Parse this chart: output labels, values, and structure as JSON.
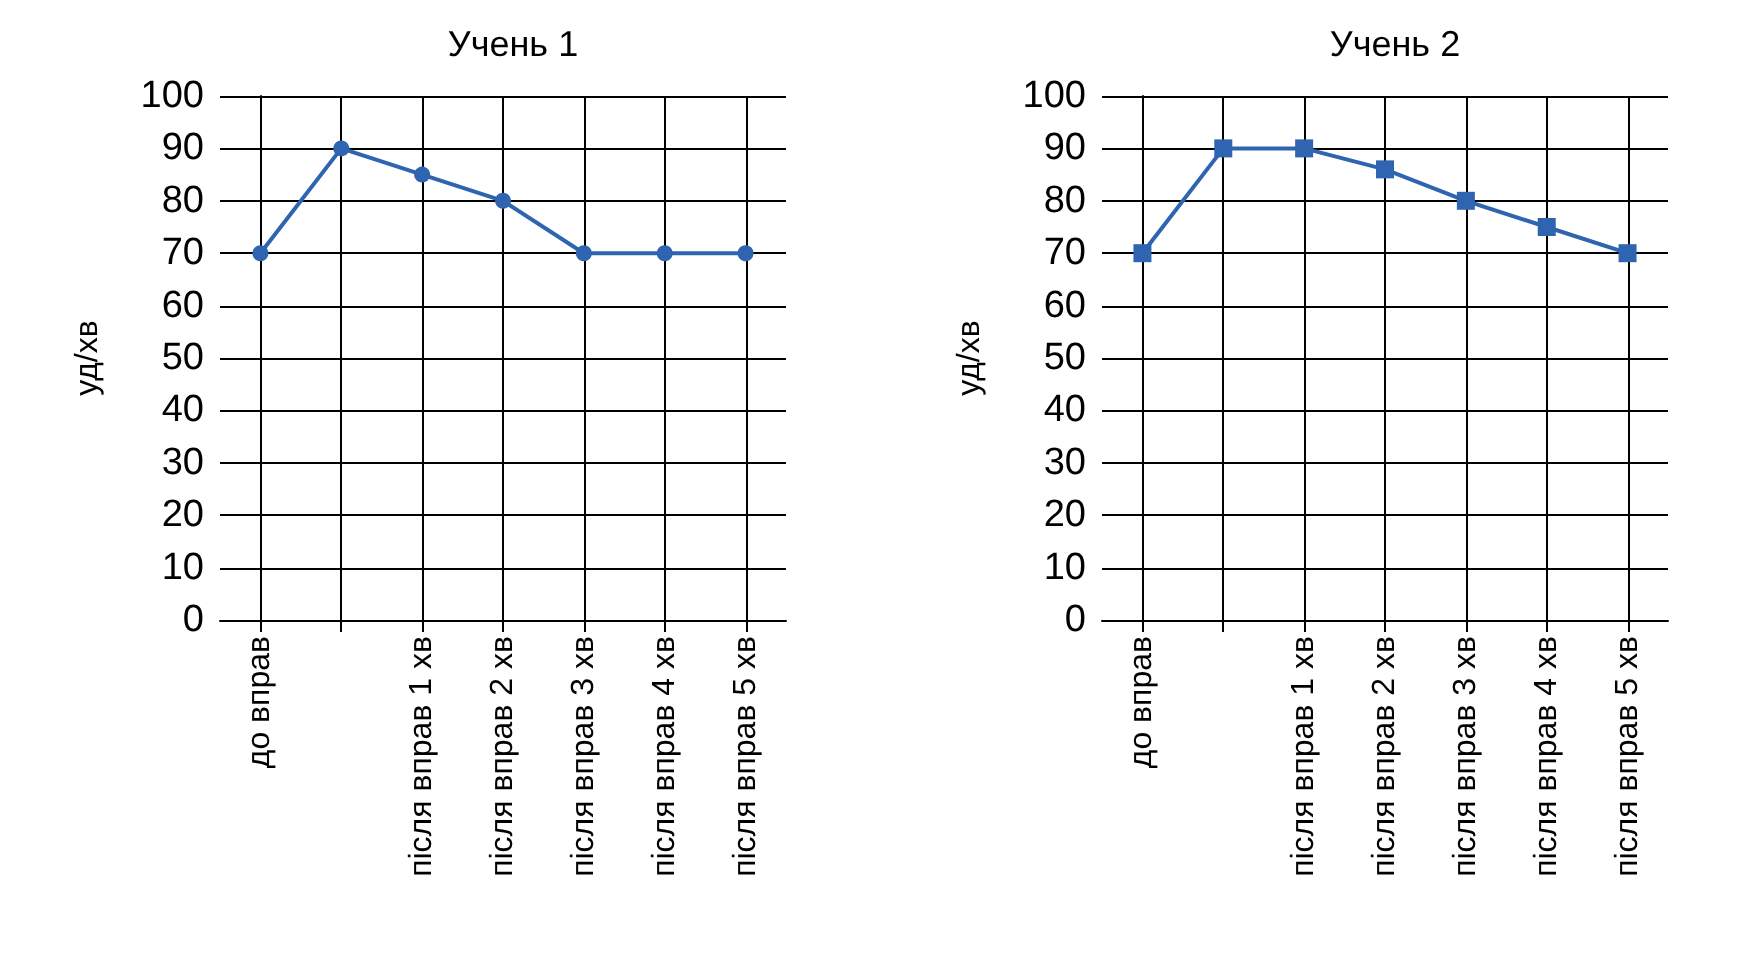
{
  "chart_data": [
    {
      "type": "line",
      "title": "Учень 1",
      "ylabel": "уд/хв",
      "categories": [
        "до вправ",
        null,
        "після вправ 1 хв",
        "після вправ 2 хв",
        "після вправ 3 хв",
        "після вправ 4 хв",
        "після вправ 5 хв"
      ],
      "series": [
        {
          "color": "#2e64b0",
          "values": [
            70,
            90,
            85,
            80,
            70,
            70,
            70
          ]
        }
      ],
      "ylim": [
        0,
        100
      ],
      "yticks": [
        0,
        10,
        20,
        30,
        40,
        50,
        60,
        70,
        80,
        90,
        100
      ],
      "grid": true,
      "marker": "circle",
      "line_style": "solid"
    },
    {
      "type": "line",
      "title": "Учень 2",
      "ylabel": "уд/хв",
      "categories": [
        "до вправ",
        null,
        "після вправ 1 хв",
        "після вправ 2 хв",
        "після вправ 3 хв",
        "після вправ 4 хв",
        "після вправ 5 хв"
      ],
      "series": [
        {
          "color": "#2e64b0",
          "values": [
            70,
            90,
            90,
            86,
            80,
            75,
            70
          ]
        }
      ],
      "ylim": [
        0,
        100
      ],
      "yticks": [
        0,
        10,
        20,
        30,
        40,
        50,
        60,
        70,
        80,
        90,
        100
      ],
      "grid": true,
      "marker": "square",
      "line_style": "solid"
    }
  ]
}
